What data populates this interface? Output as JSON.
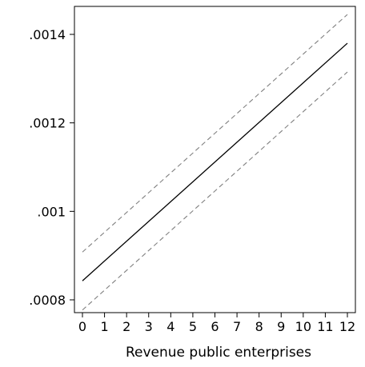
{
  "chart_data": {
    "type": "line",
    "title": "",
    "xlabel": "Revenue public enterprises",
    "ylabel": "",
    "xlim": [
      0,
      12
    ],
    "ylim": [
      0.00078,
      0.00146
    ],
    "x_ticks": [
      0,
      1,
      2,
      3,
      4,
      5,
      6,
      7,
      8,
      9,
      10,
      11,
      12
    ],
    "x_tick_labels": [
      "0",
      "1",
      "2",
      "3",
      "4",
      "5",
      "6",
      "7",
      "8",
      "9",
      "10",
      "11",
      "12"
    ],
    "y_ticks": [
      0.0008,
      0.001,
      0.0012,
      0.0014
    ],
    "y_tick_labels": [
      ".0008",
      ".001",
      ".0012",
      ".0014"
    ],
    "grid": false,
    "legend": "none",
    "series": [
      {
        "x": [
          0,
          12
        ],
        "values": [
          0.000843,
          0.00138
        ],
        "style": "solid",
        "color": "#000000"
      },
      {
        "x": [
          0,
          12
        ],
        "values": [
          0.000908,
          0.001445
        ],
        "style": "dashed",
        "color": "#808080"
      },
      {
        "x": [
          0,
          12
        ],
        "values": [
          0.000777,
          0.001315
        ],
        "style": "dashed",
        "color": "#808080"
      }
    ]
  }
}
